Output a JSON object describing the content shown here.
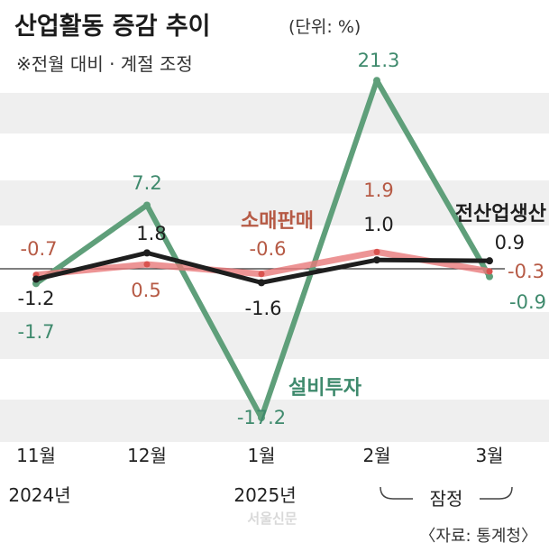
{
  "header": {
    "title": "산업활동 증감 추이",
    "unit": "(단위: %)",
    "note": "※전월 대비 · 계절 조정"
  },
  "footer": {
    "preliminary": "잠정",
    "source": "〈자료: 통계청〉",
    "watermark": "서울신문"
  },
  "chart_data": {
    "type": "line",
    "title": "산업활동 증감 추이",
    "unit": "%",
    "categories": [
      "11월",
      "12월",
      "1월",
      "2월",
      "3월"
    ],
    "year_labels": [
      "2024년",
      "",
      "2025년",
      "",
      ""
    ],
    "grid": "horizontal bands",
    "zero_line": true,
    "series": [
      {
        "name": "전산업생산",
        "color": "#1e1e1e",
        "values": [
          -1.2,
          1.8,
          -1.6,
          1.0,
          0.9
        ]
      },
      {
        "name": "소매판매",
        "color": "#e8797a",
        "values": [
          -0.7,
          0.5,
          -0.6,
          1.9,
          -0.3
        ]
      },
      {
        "name": "설비투자",
        "color": "#5f9f7a",
        "values": [
          -1.7,
          7.2,
          -17.2,
          21.3,
          -0.9
        ]
      }
    ],
    "value_labels": {
      "전산업생산": [
        "-1.2",
        "1.8",
        "-1.6",
        "1.0",
        "0.9"
      ],
      "소매판매": [
        "-0.7",
        "0.5",
        "-0.6",
        "1.9",
        "-0.3"
      ],
      "설비투자": [
        "-1.7",
        "7.2",
        "-17.2",
        "21.3",
        "-0.9"
      ]
    },
    "label_colors": {
      "전산업생산": "#1e1e1e",
      "소매판매": "#b65a45",
      "설비투자": "#3f8a6d"
    }
  }
}
